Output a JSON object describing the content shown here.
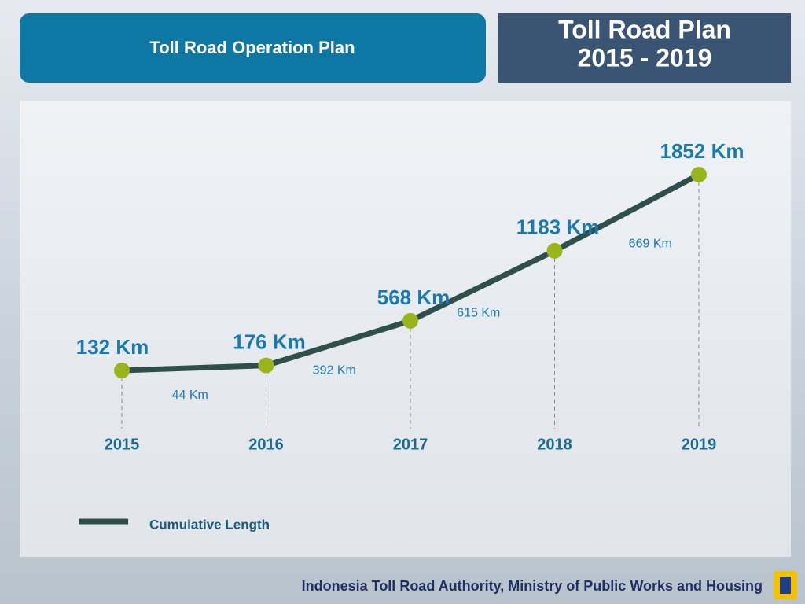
{
  "header": {
    "title": "Toll Road Operation Plan",
    "badge_line1": "Toll Road Plan",
    "badge_line2": "2015 - 2019"
  },
  "footer": {
    "source": "Indonesia Toll Road Authority, Ministry of Public Works and Housing"
  },
  "chart_data": {
    "type": "line",
    "categories": [
      "2015",
      "2016",
      "2017",
      "2018",
      "2019"
    ],
    "series": [
      {
        "name": "Cumulative Length",
        "color": "#2f4f4f",
        "marker_color": "#9ab51c",
        "values": [
          132,
          176,
          568,
          1183,
          1852
        ],
        "value_labels": [
          "132 Km",
          "176 Km",
          "568 Km",
          "1183 Km",
          "1852 Km"
        ]
      }
    ],
    "increments": [
      44,
      392,
      615,
      669
    ],
    "increment_labels": [
      "44 Km",
      "392 Km",
      "615 Km",
      "669 Km"
    ]
  }
}
